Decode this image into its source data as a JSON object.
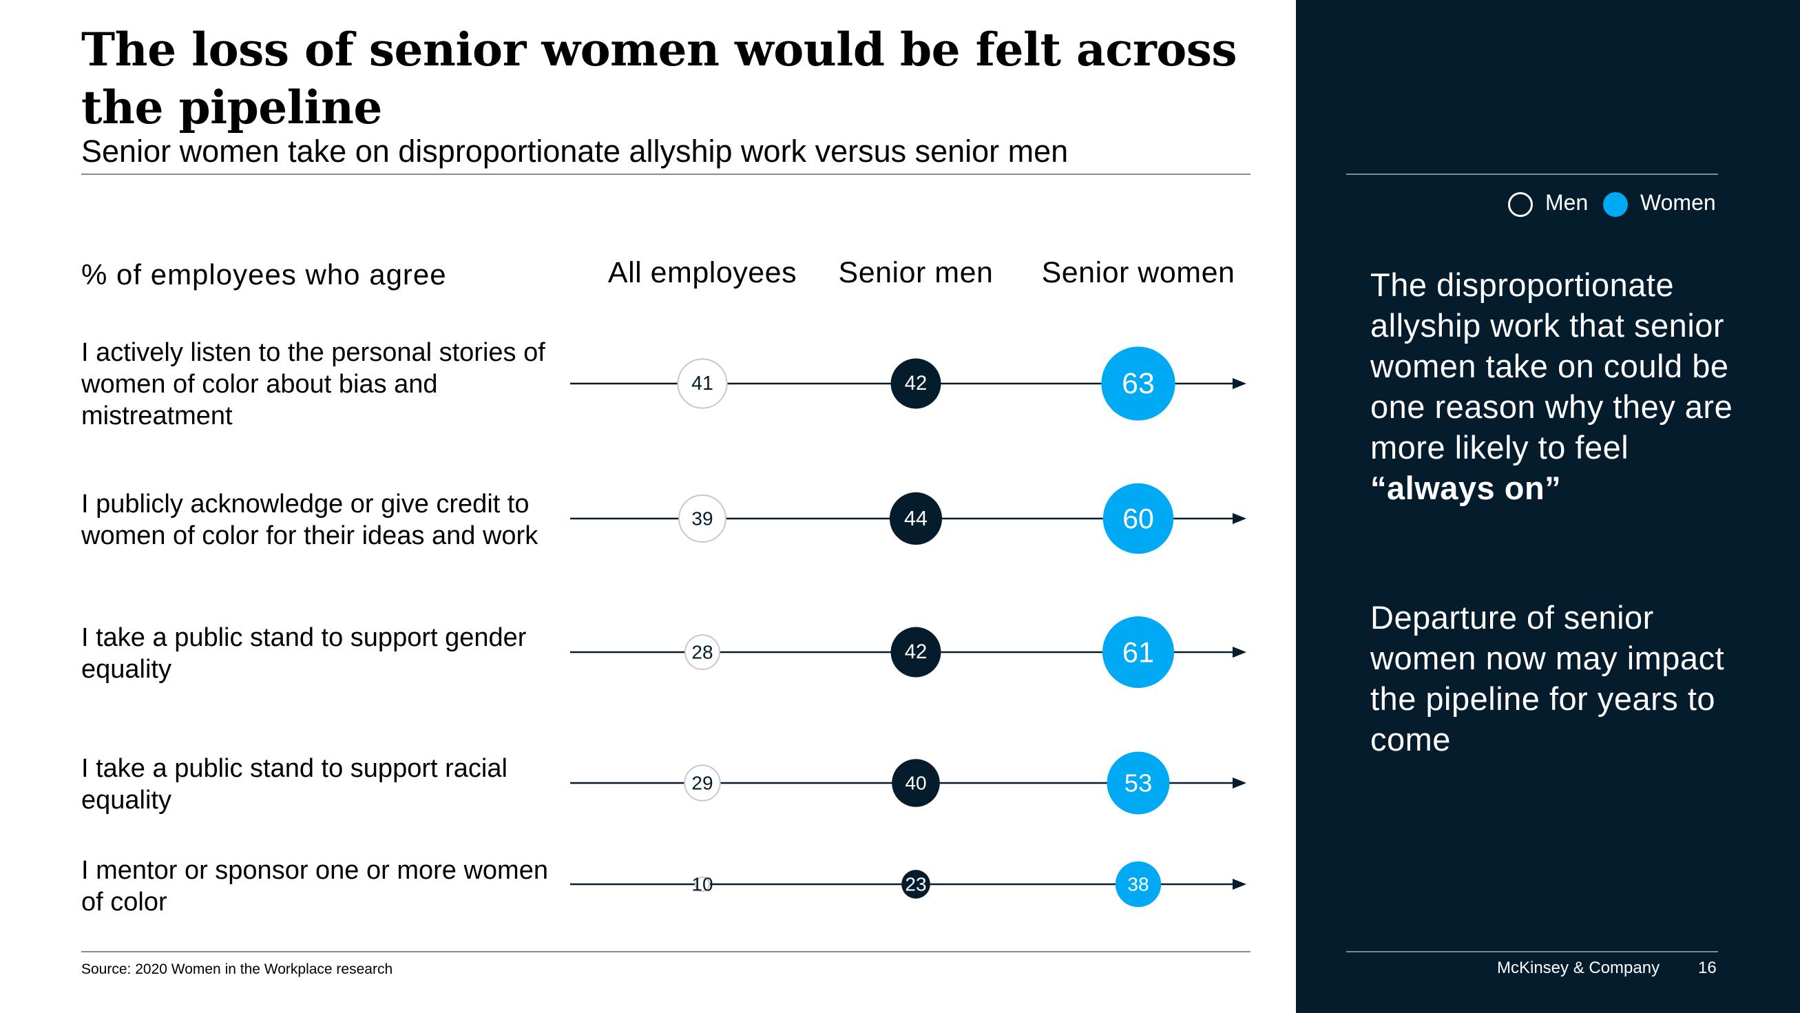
{
  "title": "The loss of senior women would be felt across the pipeline",
  "subtitle": "Senior women take on disproportionate allyship work versus senior men",
  "source": "Source: 2020 Women in the Workplace research",
  "legend": {
    "men": "Men",
    "women": "Women"
  },
  "panel": {
    "paragraph1": "The disproportionate allyship work that senior women take on could be one reason why they are more likely to feel",
    "paragraph1_emphasis": "“always on”",
    "paragraph2": "Departure of senior women now may impact the pipeline for years to come"
  },
  "footer": {
    "brand": "McKinsey & Company",
    "page": "16"
  },
  "colors": {
    "navy": "#051c2c",
    "blue": "#00a9f4",
    "white": "#ffffff"
  },
  "chart_data": {
    "type": "bubble-dot-plot",
    "measure": "% of employees who agree",
    "categories": [
      "I actively listen to the personal stories of women of color about bias and mistreatment",
      "I publicly acknowledge or give credit to women of color for their ideas and work",
      "I take a public stand to support gender equality",
      "I take a public stand to support racial equality",
      "I mentor or sponsor one or more women of color"
    ],
    "series": [
      {
        "name": "All employees",
        "values": [
          41,
          39,
          28,
          29,
          10
        ]
      },
      {
        "name": "Senior men",
        "values": [
          42,
          44,
          42,
          40,
          23
        ]
      },
      {
        "name": "Senior women",
        "values": [
          63,
          60,
          61,
          53,
          38
        ]
      }
    ]
  }
}
